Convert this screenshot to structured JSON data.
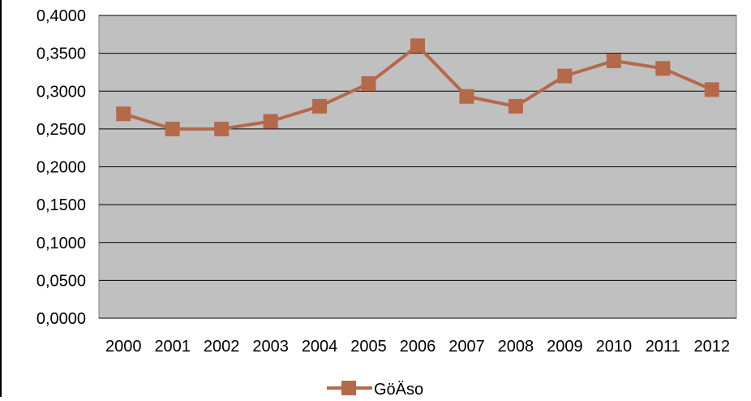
{
  "chart_data": {
    "type": "line",
    "categories": [
      "2000",
      "2001",
      "2002",
      "2003",
      "2004",
      "2005",
      "2006",
      "2007",
      "2008",
      "2009",
      "2010",
      "2011",
      "2012"
    ],
    "series": [
      {
        "name": "GöÄso",
        "values": [
          0.27,
          0.25,
          0.25,
          0.26,
          0.28,
          0.31,
          0.36,
          0.293,
          0.28,
          0.32,
          0.34,
          0.33,
          0.302
        ]
      }
    ],
    "y_ticks": [
      "0,0000",
      "0,0500",
      "0,1000",
      "0,1500",
      "0,2000",
      "0,2500",
      "0,3000",
      "0,3500",
      "0,4000"
    ],
    "ylim": [
      0,
      0.4
    ],
    "grid": true,
    "legend_position": "bottom",
    "colors": {
      "series": "#b4694a",
      "plot_background": "#c0c0c0",
      "gridline": "#000000"
    }
  }
}
